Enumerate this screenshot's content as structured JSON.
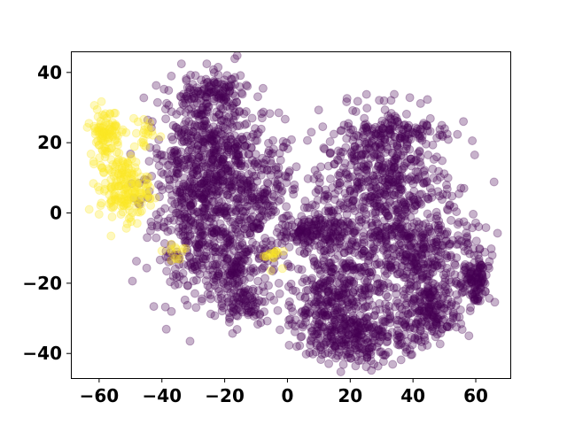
{
  "chart_data": {
    "type": "scatter",
    "title": "",
    "xlabel": "",
    "ylabel": "",
    "xlim": [
      -69,
      71
    ],
    "ylim": [
      -47,
      46
    ],
    "xticks": [
      -60,
      -40,
      -20,
      0,
      20,
      40,
      60
    ],
    "yticks": [
      -40,
      -20,
      0,
      20,
      40
    ],
    "xtick_labels": [
      "−60",
      "−40",
      "−20",
      "0",
      "20",
      "40",
      "60"
    ],
    "ytick_labels": [
      "−40",
      "−20",
      "0",
      "20",
      "40"
    ],
    "grid": false,
    "legend": "none",
    "marker": "circle",
    "alpha": 0.3,
    "colors": {
      "class_0": "#440154",
      "class_1": "#fde725"
    },
    "series": [
      {
        "clusters": [
          {
            "center": [
              -24,
              18
            ],
            "spread": [
              8,
              9
            ],
            "weight": 0.12
          },
          {
            "center": [
              -28,
              0
            ],
            "spread": [
              9,
              11
            ],
            "weight": 0.12
          },
          {
            "center": [
              -18,
              -14
            ],
            "spread": [
              7,
              6
            ],
            "weight": 0.06
          },
          {
            "center": [
              -8,
              4
            ],
            "spread": [
              5,
              8
            ],
            "weight": 0.05
          },
          {
            "center": [
              -24,
              34
            ],
            "spread": [
              6,
              3
            ],
            "weight": 0.03
          },
          {
            "center": [
              30,
              8
            ],
            "spread": [
              10,
              10
            ],
            "weight": 0.16
          },
          {
            "center": [
              42,
              -12
            ],
            "spread": [
              9,
              7
            ],
            "weight": 0.1
          },
          {
            "center": [
              15,
              -25
            ],
            "spread": [
              8,
              8
            ],
            "weight": 0.12
          },
          {
            "center": [
              25,
              -35
            ],
            "spread": [
              9,
              4
            ],
            "weight": 0.06
          },
          {
            "center": [
              46,
              -28
            ],
            "spread": [
              5,
              4
            ],
            "weight": 0.05
          },
          {
            "center": [
              60,
              -20
            ],
            "spread": [
              2,
              4
            ],
            "weight": 0.03
          },
          {
            "center": [
              5,
              -6
            ],
            "spread": [
              3,
              2
            ],
            "weight": 0.02
          },
          {
            "center": [
              12,
              -3
            ],
            "spread": [
              4,
              6
            ],
            "weight": 0.03
          },
          {
            "center": [
              -14,
              -26
            ],
            "spread": [
              4,
              3
            ],
            "weight": 0.02
          },
          {
            "center": [
              37,
              23
            ],
            "spread": [
              8,
              3
            ],
            "weight": 0.03
          }
        ],
        "point_count": 3600
      },
      {
        "clusters": [
          {
            "center": [
              -58,
              23
            ],
            "spread": [
              2.5,
              3.5
            ],
            "weight": 0.3
          },
          {
            "center": [
              -52,
              7
            ],
            "spread": [
              4,
              4.5
            ],
            "weight": 0.55
          },
          {
            "center": [
              -46,
              23
            ],
            "spread": [
              2,
              3
            ],
            "weight": 0.06
          },
          {
            "center": [
              -36,
              -11
            ],
            "spread": [
              2,
              2
            ],
            "weight": 0.04
          },
          {
            "center": [
              -5,
              -12
            ],
            "spread": [
              1.5,
              1.5
            ],
            "weight": 0.05
          }
        ],
        "point_count": 330
      }
    ]
  }
}
